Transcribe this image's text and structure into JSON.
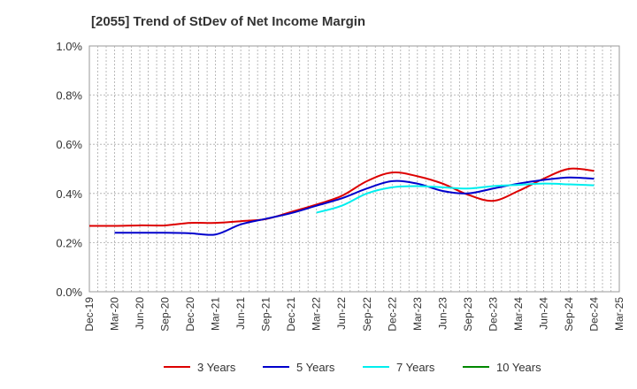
{
  "chart_data": {
    "type": "line",
    "title": "[2055]  Trend of StDev of Net Income Margin",
    "xlabel": "",
    "ylabel": "",
    "ylim": [
      0,
      1.0
    ],
    "y_ticks": [
      "0.0%",
      "0.2%",
      "0.4%",
      "0.6%",
      "0.8%",
      "1.0%"
    ],
    "y_tick_values": [
      0,
      0.2,
      0.4,
      0.6,
      0.8,
      1.0
    ],
    "x_ticks": [
      "Dec-19",
      "Mar-20",
      "Jun-20",
      "Sep-20",
      "Dec-20",
      "Mar-21",
      "Jun-21",
      "Sep-21",
      "Dec-21",
      "Mar-22",
      "Jun-22",
      "Sep-22",
      "Dec-22",
      "Mar-23",
      "Jun-23",
      "Sep-23",
      "Dec-23",
      "Mar-24",
      "Jun-24",
      "Sep-24",
      "Dec-24",
      "Mar-25"
    ],
    "grid": true,
    "legend_position": "bottom",
    "series": [
      {
        "name": "3 Years",
        "color": "#dd0000",
        "x": [
          "Dec-19",
          "Mar-20",
          "Jun-20",
          "Sep-20",
          "Dec-20",
          "Mar-21",
          "Jun-21",
          "Sep-21",
          "Dec-21",
          "Mar-22",
          "Jun-22",
          "Sep-22",
          "Dec-22",
          "Mar-23",
          "Jun-23",
          "Sep-23",
          "Dec-23",
          "Mar-24",
          "Jun-24",
          "Sep-24",
          "Dec-24"
        ],
        "values": [
          0.268,
          0.268,
          0.27,
          0.27,
          0.28,
          0.28,
          0.287,
          0.296,
          0.325,
          0.355,
          0.39,
          0.45,
          0.485,
          0.47,
          0.44,
          0.395,
          0.37,
          0.41,
          0.46,
          0.5,
          0.492
        ]
      },
      {
        "name": "5 Years",
        "color": "#0000cc",
        "x": [
          "Mar-20",
          "Jun-20",
          "Sep-20",
          "Dec-20",
          "Mar-21",
          "Jun-21",
          "Sep-21",
          "Dec-21",
          "Mar-22",
          "Jun-22",
          "Sep-22",
          "Dec-22",
          "Mar-23",
          "Jun-23",
          "Sep-23",
          "Dec-23",
          "Mar-24",
          "Jun-24",
          "Sep-24",
          "Dec-24"
        ],
        "values": [
          0.24,
          0.24,
          0.24,
          0.238,
          0.233,
          0.274,
          0.297,
          0.32,
          0.35,
          0.38,
          0.42,
          0.45,
          0.44,
          0.41,
          0.4,
          0.42,
          0.44,
          0.455,
          0.465,
          0.46
        ]
      },
      {
        "name": "7 Years",
        "color": "#00eeee",
        "x": [
          "Mar-22",
          "Jun-22",
          "Sep-22",
          "Dec-22",
          "Mar-23",
          "Jun-23",
          "Sep-23",
          "Dec-23",
          "Mar-24",
          "Jun-24",
          "Sep-24",
          "Dec-24"
        ],
        "values": [
          0.322,
          0.35,
          0.4,
          0.425,
          0.43,
          0.425,
          0.42,
          0.43,
          0.435,
          0.44,
          0.437,
          0.433
        ]
      },
      {
        "name": "10 Years",
        "color": "#008800",
        "x": [],
        "values": []
      }
    ]
  }
}
